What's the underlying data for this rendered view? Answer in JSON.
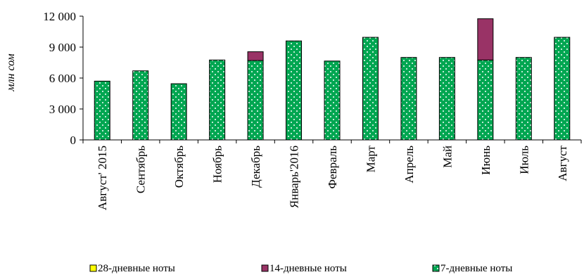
{
  "chart_data": {
    "type": "bar",
    "stacked": true,
    "ylabel": "млн сом",
    "ylim": [
      0,
      12000
    ],
    "yticks": [
      "0",
      "3 000",
      "6 000",
      "9 000",
      "12 000"
    ],
    "categories": [
      "Август' 2015",
      "Сентябрь",
      "Октябрь",
      "Ноябрь",
      "Декабрь",
      "Январь'2016",
      "Февраль",
      "Март",
      "Апрель",
      "Май",
      "Июнь",
      "Июль",
      "Август"
    ],
    "series": [
      {
        "name": "7-дневные ноты",
        "color": "#00a651",
        "values": [
          5700,
          6700,
          5450,
          7750,
          7700,
          9600,
          7650,
          9950,
          8000,
          8000,
          7750,
          8000,
          9950
        ]
      },
      {
        "name": "14-дневные ноты",
        "color": "#993366",
        "values": [
          0,
          0,
          0,
          0,
          850,
          0,
          0,
          0,
          0,
          0,
          4000,
          0,
          0
        ]
      },
      {
        "name": "28-дневные ноты",
        "color": "#ffff00",
        "values": [
          0,
          0,
          0,
          0,
          0,
          0,
          0,
          0,
          0,
          0,
          0,
          0,
          0
        ]
      }
    ],
    "legend": [
      "28-дневные ноты",
      "14-дневные ноты",
      "7-дневные ноты"
    ],
    "grid": false,
    "legend_position": "bottom"
  }
}
